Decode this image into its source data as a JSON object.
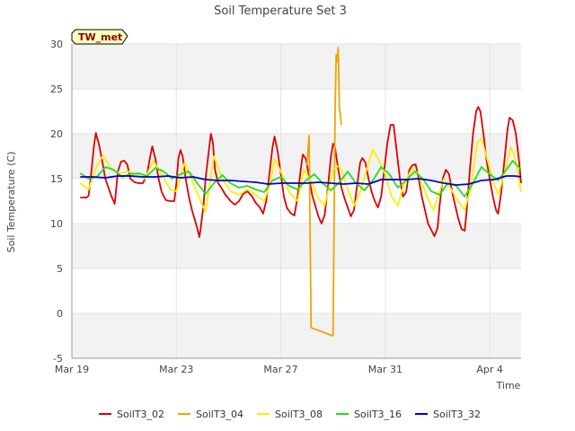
{
  "chart_data": {
    "type": "line",
    "title": "Soil Temperature Set 3",
    "xlabel": "Time",
    "ylabel": "Soil Temperature (C)",
    "station_badge": "TW_met",
    "x_unit": "day-of-period (0 = Mar 19)",
    "xlim": [
      0,
      21.5
    ],
    "ylim": [
      -5,
      30
    ],
    "y_ticks": [
      "-5",
      "0",
      "5",
      "10",
      "15",
      "20",
      "25",
      "30"
    ],
    "x_ticks": [
      {
        "label": "Mar 19",
        "value": 0
      },
      {
        "label": "Mar 23",
        "value": 5
      },
      {
        "label": "Mar 27",
        "value": 10
      },
      {
        "label": "Mar 31",
        "value": 15
      },
      {
        "label": "Apr 4",
        "value": 20
      }
    ],
    "grid": true,
    "legend": "bottom",
    "series": [
      {
        "name": "SoilT3_02",
        "color": "#dd0000",
        "points": [
          [
            0.4,
            12.9
          ],
          [
            0.7,
            12.9
          ],
          [
            0.8,
            13.1
          ],
          [
            0.9,
            15
          ],
          [
            1.05,
            18.5
          ],
          [
            1.15,
            20.1
          ],
          [
            1.3,
            18.8
          ],
          [
            1.45,
            17
          ],
          [
            1.6,
            15
          ],
          [
            1.75,
            14
          ],
          [
            1.9,
            13
          ],
          [
            2.05,
            12.2
          ],
          [
            2.2,
            15.8
          ],
          [
            2.35,
            16.9
          ],
          [
            2.5,
            17
          ],
          [
            2.65,
            16.6
          ],
          [
            2.8,
            15
          ],
          [
            3.0,
            14.6
          ],
          [
            3.2,
            14.5
          ],
          [
            3.4,
            14.5
          ],
          [
            3.6,
            15.5
          ],
          [
            3.75,
            17.5
          ],
          [
            3.85,
            18.6
          ],
          [
            4.0,
            17.2
          ],
          [
            4.15,
            15
          ],
          [
            4.3,
            13.5
          ],
          [
            4.5,
            12.6
          ],
          [
            4.7,
            12.5
          ],
          [
            4.9,
            12.5
          ],
          [
            5.0,
            14.5
          ],
          [
            5.1,
            17.3
          ],
          [
            5.2,
            18.2
          ],
          [
            5.3,
            17.5
          ],
          [
            5.45,
            15
          ],
          [
            5.6,
            13
          ],
          [
            5.75,
            11.5
          ],
          [
            5.9,
            10.3
          ],
          [
            6.0,
            9.5
          ],
          [
            6.1,
            8.5
          ],
          [
            6.15,
            9.2
          ],
          [
            6.3,
            12
          ],
          [
            6.4,
            15
          ],
          [
            6.55,
            18
          ],
          [
            6.65,
            20
          ],
          [
            6.75,
            19
          ],
          [
            6.85,
            16
          ],
          [
            7.0,
            14.5
          ],
          [
            7.15,
            14
          ],
          [
            7.35,
            13.2
          ],
          [
            7.6,
            12.5
          ],
          [
            7.8,
            12.1
          ],
          [
            8.0,
            12.5
          ],
          [
            8.2,
            13.3
          ],
          [
            8.4,
            13.6
          ],
          [
            8.6,
            13.1
          ],
          [
            8.8,
            12.3
          ],
          [
            9.0,
            11.8
          ],
          [
            9.15,
            11.1
          ],
          [
            9.3,
            12.5
          ],
          [
            9.45,
            15.5
          ],
          [
            9.6,
            18.5
          ],
          [
            9.7,
            19.7
          ],
          [
            9.85,
            18
          ],
          [
            10.0,
            15.5
          ],
          [
            10.15,
            13
          ],
          [
            10.3,
            11.7
          ],
          [
            10.5,
            11.1
          ],
          [
            10.65,
            10.9
          ],
          [
            10.8,
            13
          ],
          [
            10.95,
            16
          ],
          [
            11.05,
            17.7
          ],
          [
            11.2,
            17.2
          ],
          [
            11.35,
            15.2
          ],
          [
            11.5,
            13.2
          ],
          [
            11.65,
            12
          ],
          [
            11.8,
            10.8
          ],
          [
            11.95,
            10
          ],
          [
            12.1,
            11
          ],
          [
            12.25,
            14
          ],
          [
            12.4,
            17.5
          ],
          [
            12.5,
            18.9
          ],
          [
            12.6,
            18.4
          ],
          [
            12.75,
            16
          ],
          [
            12.9,
            14
          ],
          [
            13.05,
            12.8
          ],
          [
            13.2,
            11.8
          ],
          [
            13.35,
            10.8
          ],
          [
            13.5,
            11.5
          ],
          [
            13.65,
            14.2
          ],
          [
            13.8,
            16.8
          ],
          [
            13.9,
            17.3
          ],
          [
            14.05,
            16.8
          ],
          [
            14.2,
            15
          ],
          [
            14.35,
            13.5
          ],
          [
            14.5,
            12.5
          ],
          [
            14.65,
            11.8
          ],
          [
            14.8,
            13
          ],
          [
            14.95,
            16
          ],
          [
            15.1,
            19
          ],
          [
            15.25,
            21
          ],
          [
            15.4,
            21
          ],
          [
            15.55,
            18
          ],
          [
            15.7,
            15
          ],
          [
            15.85,
            13
          ],
          [
            16.0,
            13.5
          ],
          [
            16.15,
            16
          ],
          [
            16.3,
            16.5
          ],
          [
            16.45,
            16.6
          ],
          [
            16.6,
            15
          ],
          [
            16.75,
            13
          ],
          [
            16.9,
            11.5
          ],
          [
            17.05,
            10
          ],
          [
            17.2,
            9.3
          ],
          [
            17.35,
            8.6
          ],
          [
            17.5,
            9.5
          ],
          [
            17.6,
            12
          ],
          [
            17.75,
            15
          ],
          [
            17.9,
            16
          ],
          [
            18.05,
            15.5
          ],
          [
            18.2,
            13.5
          ],
          [
            18.35,
            12
          ],
          [
            18.5,
            10.5
          ],
          [
            18.65,
            9.4
          ],
          [
            18.8,
            9.2
          ],
          [
            18.9,
            11.5
          ],
          [
            19.05,
            16
          ],
          [
            19.2,
            20
          ],
          [
            19.35,
            22.5
          ],
          [
            19.45,
            23
          ],
          [
            19.55,
            22.5
          ],
          [
            19.7,
            20
          ],
          [
            19.85,
            17
          ],
          [
            20.0,
            15
          ],
          [
            20.15,
            13
          ],
          [
            20.3,
            11.5
          ],
          [
            20.4,
            11.1
          ],
          [
            20.55,
            13.5
          ],
          [
            20.7,
            17
          ],
          [
            20.85,
            20.5
          ],
          [
            20.95,
            21.8
          ],
          [
            21.1,
            21.5
          ],
          [
            21.25,
            20
          ],
          [
            21.4,
            17
          ],
          [
            21.5,
            14.5
          ]
        ]
      },
      {
        "name": "SoilT3_04",
        "color": "#f0a500",
        "points": [
          [
            11.25,
            16.5
          ],
          [
            11.35,
            19.8
          ],
          [
            11.45,
            -1.6
          ],
          [
            12.5,
            -2.5
          ],
          [
            12.6,
            23
          ],
          [
            12.65,
            28.8
          ],
          [
            12.7,
            28.0
          ],
          [
            12.75,
            29.6
          ],
          [
            12.8,
            23
          ],
          [
            12.9,
            21
          ]
        ]
      },
      {
        "name": "SoilT3_08",
        "color": "#ffee00",
        "points": [
          [
            0.4,
            14.5
          ],
          [
            0.8,
            13.8
          ],
          [
            1.2,
            16.5
          ],
          [
            1.5,
            17.6
          ],
          [
            1.9,
            16
          ],
          [
            2.3,
            15.6
          ],
          [
            2.7,
            15.8
          ],
          [
            3.1,
            15.5
          ],
          [
            3.5,
            15
          ],
          [
            3.9,
            17
          ],
          [
            4.3,
            15.5
          ],
          [
            4.7,
            13.8
          ],
          [
            5.0,
            13.6
          ],
          [
            5.4,
            16.8
          ],
          [
            5.8,
            14.5
          ],
          [
            6.2,
            12.3
          ],
          [
            6.4,
            11.3
          ],
          [
            6.8,
            17.5
          ],
          [
            7.2,
            15
          ],
          [
            7.6,
            13.6
          ],
          [
            8.0,
            13.2
          ],
          [
            8.4,
            13.8
          ],
          [
            8.8,
            13.2
          ],
          [
            9.2,
            12.5
          ],
          [
            9.5,
            14.5
          ],
          [
            9.7,
            17.2
          ],
          [
            10.0,
            15.8
          ],
          [
            10.4,
            13.5
          ],
          [
            10.8,
            12.5
          ],
          [
            11.1,
            16
          ],
          [
            11.5,
            14.5
          ],
          [
            11.8,
            12.8
          ],
          [
            12.1,
            12
          ],
          [
            12.5,
            16
          ],
          [
            12.8,
            16.5
          ],
          [
            13.1,
            14.5
          ],
          [
            13.5,
            12
          ],
          [
            13.8,
            13.5
          ],
          [
            14.1,
            16
          ],
          [
            14.4,
            18.2
          ],
          [
            14.6,
            17.5
          ],
          [
            15.0,
            15.5
          ],
          [
            15.3,
            13
          ],
          [
            15.6,
            12
          ],
          [
            15.9,
            14.5
          ],
          [
            16.3,
            16.2
          ],
          [
            16.6,
            15.5
          ],
          [
            17.0,
            13
          ],
          [
            17.3,
            11.5
          ],
          [
            17.6,
            13.5
          ],
          [
            17.8,
            15
          ],
          [
            18.1,
            14
          ],
          [
            18.5,
            12.5
          ],
          [
            18.8,
            11.5
          ],
          [
            19.1,
            14
          ],
          [
            19.4,
            19
          ],
          [
            19.6,
            19.5
          ],
          [
            19.9,
            17
          ],
          [
            20.2,
            14.5
          ],
          [
            20.4,
            13.2
          ],
          [
            20.7,
            15.5
          ],
          [
            21.0,
            18.5
          ],
          [
            21.2,
            17.5
          ],
          [
            21.5,
            13.5
          ]
        ]
      },
      {
        "name": "SoilT3_16",
        "color": "#22dd22",
        "points": [
          [
            0.4,
            15.6
          ],
          [
            0.8,
            15
          ],
          [
            1.2,
            15.2
          ],
          [
            1.6,
            16.3
          ],
          [
            2.0,
            16
          ],
          [
            2.4,
            15.2
          ],
          [
            2.8,
            15.5
          ],
          [
            3.2,
            15.6
          ],
          [
            3.6,
            15.3
          ],
          [
            4.0,
            16.2
          ],
          [
            4.4,
            15.8
          ],
          [
            4.8,
            15
          ],
          [
            5.2,
            15.5
          ],
          [
            5.6,
            15.8
          ],
          [
            6.0,
            14.5
          ],
          [
            6.4,
            13.3
          ],
          [
            6.8,
            14.5
          ],
          [
            7.2,
            15.4
          ],
          [
            7.6,
            14.5
          ],
          [
            8.0,
            14
          ],
          [
            8.4,
            14.2
          ],
          [
            8.8,
            13.8
          ],
          [
            9.2,
            13.5
          ],
          [
            9.6,
            14.8
          ],
          [
            10.0,
            15.2
          ],
          [
            10.4,
            14.2
          ],
          [
            10.8,
            13.8
          ],
          [
            11.2,
            14.8
          ],
          [
            11.6,
            15.5
          ],
          [
            12.0,
            14.5
          ],
          [
            12.4,
            13.7
          ],
          [
            12.8,
            14.6
          ],
          [
            13.2,
            15.8
          ],
          [
            13.6,
            14.5
          ],
          [
            14.0,
            13.7
          ],
          [
            14.4,
            14.8
          ],
          [
            14.8,
            16.3
          ],
          [
            15.2,
            15.5
          ],
          [
            15.6,
            14
          ],
          [
            16.0,
            14.8
          ],
          [
            16.4,
            15.8
          ],
          [
            16.8,
            15
          ],
          [
            17.2,
            13.6
          ],
          [
            17.6,
            13.2
          ],
          [
            18.0,
            14.5
          ],
          [
            18.4,
            14.2
          ],
          [
            18.8,
            13
          ],
          [
            19.2,
            14.5
          ],
          [
            19.6,
            16.3
          ],
          [
            20.0,
            15.5
          ],
          [
            20.4,
            14.8
          ],
          [
            20.8,
            16
          ],
          [
            21.1,
            17
          ],
          [
            21.5,
            16
          ]
        ]
      },
      {
        "name": "SoilT3_32",
        "color": "#0000cc",
        "points": [
          [
            0.4,
            15.2
          ],
          [
            1.0,
            15.2
          ],
          [
            1.6,
            15.1
          ],
          [
            2.2,
            15.3
          ],
          [
            2.8,
            15.3
          ],
          [
            3.4,
            15.2
          ],
          [
            4.0,
            15.2
          ],
          [
            4.6,
            15.3
          ],
          [
            5.2,
            15.1
          ],
          [
            5.8,
            15.2
          ],
          [
            6.4,
            14.9
          ],
          [
            7.0,
            14.8
          ],
          [
            7.6,
            14.8
          ],
          [
            8.2,
            14.7
          ],
          [
            8.8,
            14.6
          ],
          [
            9.4,
            14.4
          ],
          [
            10.0,
            14.5
          ],
          [
            10.6,
            14.5
          ],
          [
            11.2,
            14.5
          ],
          [
            11.8,
            14.6
          ],
          [
            12.4,
            14.5
          ],
          [
            13.0,
            14.4
          ],
          [
            13.6,
            14.5
          ],
          [
            14.2,
            14.4
          ],
          [
            14.8,
            14.9
          ],
          [
            15.4,
            14.9
          ],
          [
            16.0,
            14.9
          ],
          [
            16.6,
            15
          ],
          [
            17.2,
            14.8
          ],
          [
            17.8,
            14.5
          ],
          [
            18.4,
            14.3
          ],
          [
            19.0,
            14.4
          ],
          [
            19.6,
            14.8
          ],
          [
            20.2,
            14.9
          ],
          [
            20.8,
            15.3
          ],
          [
            21.2,
            15.3
          ],
          [
            21.5,
            15.2
          ]
        ]
      }
    ]
  }
}
